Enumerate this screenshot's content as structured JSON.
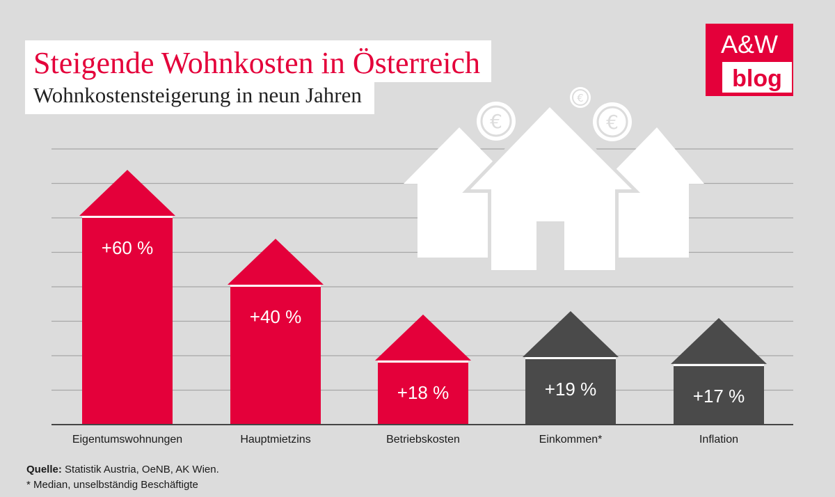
{
  "header": {
    "title": "Steigende Wohnkosten in Österreich",
    "subtitle": "Wohnkostensteigerung in neun Jahren"
  },
  "logo": {
    "line1": "A&W",
    "line2": "blog",
    "color": "#e4003a"
  },
  "colors": {
    "red": "#e4003a",
    "gray": "#4a4a4a",
    "background": "#dcdcdc",
    "gridline": "#a6a6a6"
  },
  "chart_data": {
    "type": "bar",
    "title": "Steigende Wohnkosten in Österreich",
    "subtitle": "Wohnkostensteigerung in neun Jahren",
    "xlabel": "",
    "ylabel": "",
    "unit": "%",
    "grid": true,
    "ylim": [
      0,
      80
    ],
    "categories": [
      "Eigentumswohnungen",
      "Hauptmietzins",
      "Betriebskosten",
      "Einkommen*",
      "Inflation"
    ],
    "values": [
      60,
      40,
      18,
      19,
      17
    ],
    "labels": [
      "+60 %",
      "+40 %",
      "+18 %",
      "+19 %",
      "+17 %"
    ],
    "bar_colors": [
      "#e4003a",
      "#e4003a",
      "#e4003a",
      "#4a4a4a",
      "#4a4a4a"
    ]
  },
  "footer": {
    "source_label": "Quelle:",
    "source_text": " Statistik Austria, OeNB, AK Wien.",
    "note": "* Median, unselbständig Beschäftigte"
  }
}
